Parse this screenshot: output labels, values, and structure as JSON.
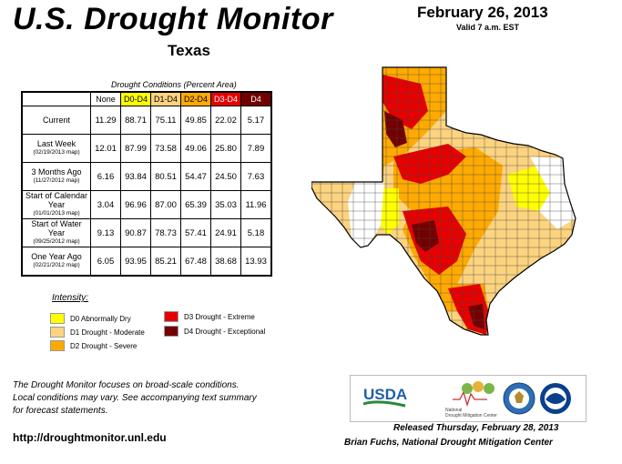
{
  "header": {
    "title": "U.S. Drought Monitor",
    "region": "Texas",
    "date": "February 26, 2013",
    "valid": "Valid 7 a.m. EST"
  },
  "table": {
    "caption": "Drought Conditions (Percent Area)",
    "columns": [
      "None",
      "D0-D4",
      "D1-D4",
      "D2-D4",
      "D3-D4",
      "D4"
    ],
    "column_colors": [
      "#ffffff",
      "#ffff00",
      "#fcd37f",
      "#ffaa00",
      "#e60000",
      "#730000"
    ],
    "rows": [
      {
        "label": "Current",
        "sub": "",
        "values": [
          "11.29",
          "88.71",
          "75.11",
          "49.85",
          "22.02",
          "5.17"
        ]
      },
      {
        "label": "Last Week",
        "sub": "(02/19/2013 map)",
        "values": [
          "12.01",
          "87.99",
          "73.58",
          "49.06",
          "25.80",
          "7.89"
        ]
      },
      {
        "label": "3 Months Ago",
        "sub": "(11/27/2012 map)",
        "values": [
          "6.16",
          "93.84",
          "80.51",
          "54.47",
          "24.50",
          "7.63"
        ]
      },
      {
        "label": "Start of Calendar Year",
        "sub": "(01/01/2013 map)",
        "values": [
          "3.04",
          "96.96",
          "87.00",
          "65.39",
          "35.03",
          "11.96"
        ]
      },
      {
        "label": "Start of Water Year",
        "sub": "(09/25/2012 map)",
        "values": [
          "9.13",
          "90.87",
          "78.73",
          "57.41",
          "24.91",
          "5.18"
        ]
      },
      {
        "label": "One Year Ago",
        "sub": "(02/21/2012 map)",
        "values": [
          "6.05",
          "93.95",
          "85.21",
          "67.48",
          "38.68",
          "13.93"
        ]
      }
    ]
  },
  "legend": {
    "title": "Intensity:",
    "items": [
      {
        "label": "D0 Abnormally Dry",
        "color": "#ffff00"
      },
      {
        "label": "D1 Drought - Moderate",
        "color": "#fcd37f"
      },
      {
        "label": "D2 Drought - Severe",
        "color": "#ffaa00"
      },
      {
        "label": "D3 Drought - Extreme",
        "color": "#e60000"
      },
      {
        "label": "D4 Drought - Exceptional",
        "color": "#730000"
      }
    ]
  },
  "footer": {
    "note_line1": "The Drought Monitor focuses on broad-scale conditions.",
    "note_line2": "Local conditions may vary. See accompanying text summary",
    "note_line3": "for forecast statements.",
    "url": "http://droughtmonitor.unl.edu",
    "released": "Released Thursday, February 28, 2013",
    "author": "Brian Fuchs, National Drought Mitigation Center"
  },
  "logos": {
    "usda": "USDA",
    "ndmc_line1": "National",
    "ndmc_line2": "Drought Mitigation Center"
  }
}
